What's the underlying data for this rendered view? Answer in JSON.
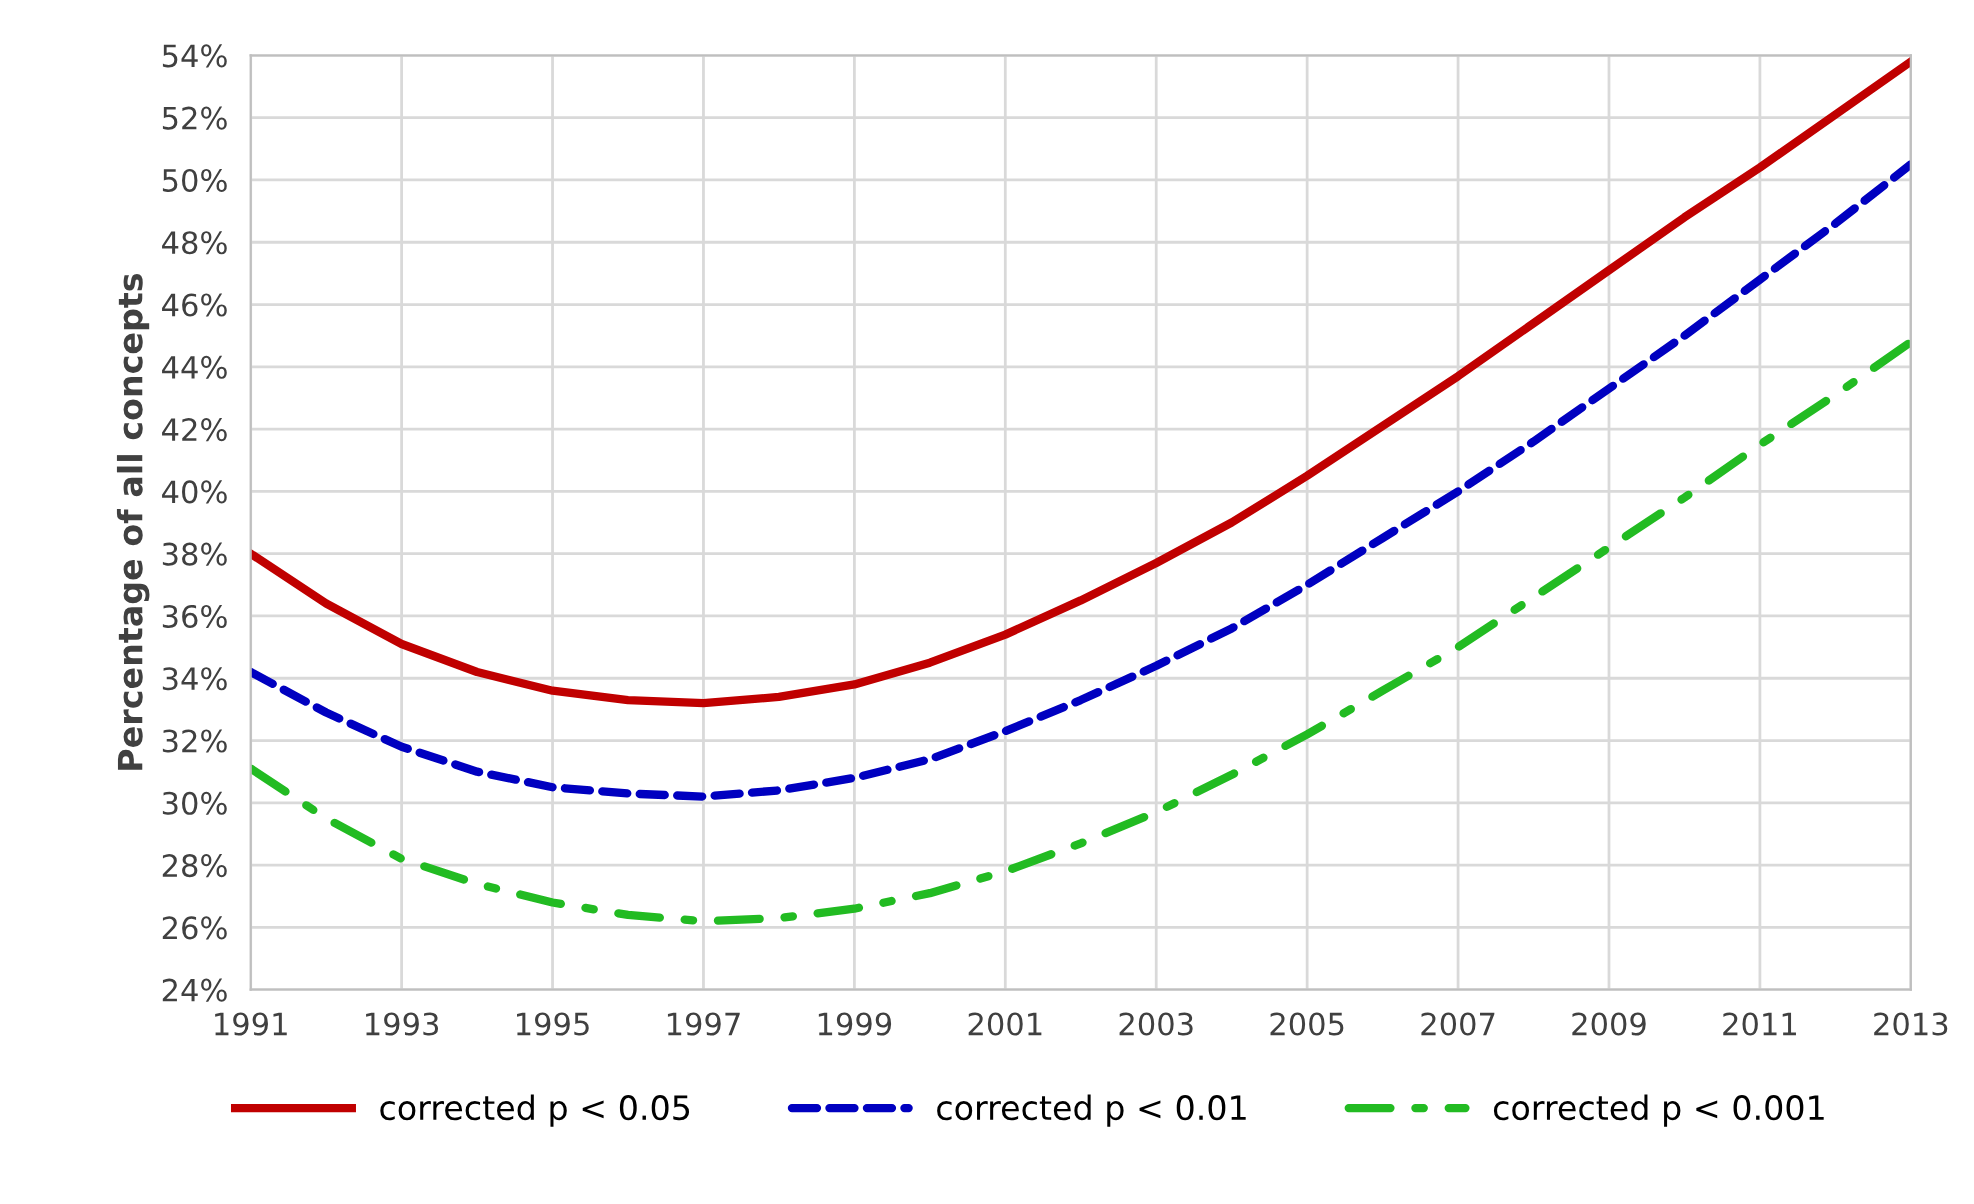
{
  "chart_data": {
    "type": "line",
    "ylabel": "Percentage of all concepts",
    "x": [
      1991,
      1992,
      1993,
      1994,
      1995,
      1996,
      1997,
      1998,
      1999,
      2000,
      2001,
      2002,
      2003,
      2004,
      2005,
      2006,
      2007,
      2008,
      2009,
      2010,
      2011,
      2012,
      2013
    ],
    "series": [
      {
        "name": "corrected p < 0.05",
        "color": "#c00000",
        "line_style": "solid",
        "values": [
          38.0,
          36.4,
          35.1,
          34.2,
          33.6,
          33.3,
          33.2,
          33.4,
          33.8,
          34.5,
          35.4,
          36.5,
          37.7,
          39.0,
          40.5,
          42.1,
          43.7,
          45.4,
          47.1,
          48.8,
          50.4,
          52.1,
          53.8
        ]
      },
      {
        "name": "corrected p < 0.01",
        "color": "#0000c0",
        "line_style": "dashed",
        "values": [
          34.2,
          32.9,
          31.8,
          31.0,
          30.5,
          30.3,
          30.2,
          30.4,
          30.8,
          31.4,
          32.3,
          33.3,
          34.4,
          35.6,
          37.0,
          38.5,
          40.0,
          41.6,
          43.3,
          45.0,
          46.8,
          48.6,
          50.5
        ]
      },
      {
        "name": "corrected p < 0.001",
        "color": "#22bb22",
        "line_style": "dashdot",
        "values": [
          31.1,
          29.5,
          28.2,
          27.4,
          26.8,
          26.4,
          26.2,
          26.3,
          26.6,
          27.1,
          27.8,
          28.7,
          29.7,
          30.9,
          32.2,
          33.6,
          35.0,
          36.6,
          38.2,
          39.8,
          41.5,
          43.1,
          44.8
        ]
      }
    ],
    "xlim": [
      1991,
      2013
    ],
    "xticks": [
      1991,
      1993,
      1995,
      1997,
      1999,
      2001,
      2003,
      2005,
      2007,
      2009,
      2011,
      2013
    ],
    "ylim": [
      24,
      54
    ],
    "yticks": [
      {
        "value": 24,
        "label": "24%"
      },
      {
        "value": 26,
        "label": "26%"
      },
      {
        "value": 28,
        "label": "28%"
      },
      {
        "value": 30,
        "label": "30%"
      },
      {
        "value": 32,
        "label": "32%"
      },
      {
        "value": 34,
        "label": "34%"
      },
      {
        "value": 36,
        "label": "36%"
      },
      {
        "value": 38,
        "label": "38%"
      },
      {
        "value": 40,
        "label": "40%"
      },
      {
        "value": 42,
        "label": "42%"
      },
      {
        "value": 44,
        "label": "44%"
      },
      {
        "value": 46,
        "label": "46%"
      },
      {
        "value": 48,
        "label": "48%"
      },
      {
        "value": 50,
        "label": "50%"
      },
      {
        "value": 52,
        "label": "52%"
      },
      {
        "value": 54,
        "label": "54%"
      }
    ],
    "grid": true,
    "legend": "bottom",
    "marker": "none"
  }
}
